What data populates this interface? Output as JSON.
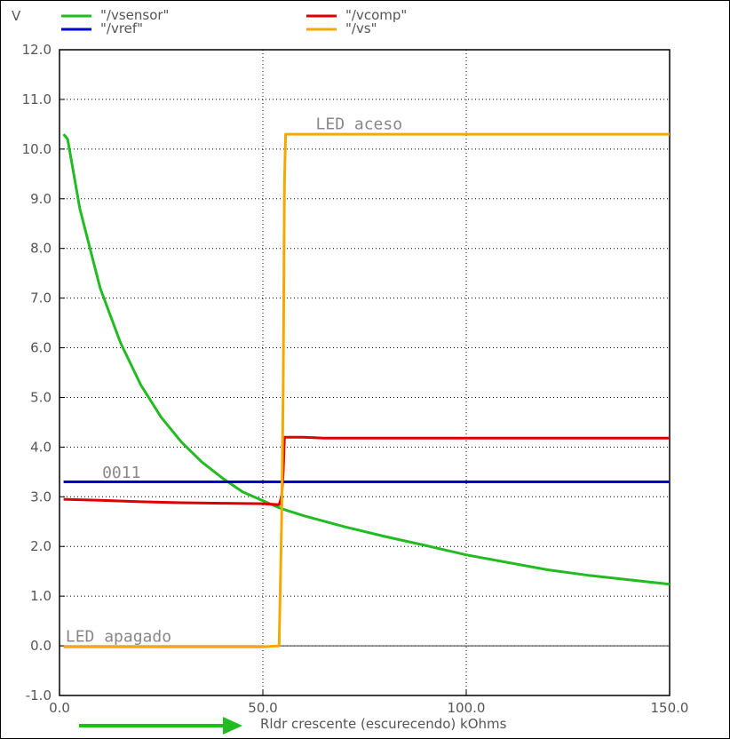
{
  "chart_data": {
    "type": "line",
    "title": "",
    "ylabel": "V",
    "xlabel": "Rldr crescente (escurecendo)  kOhms",
    "xlim": [
      0,
      150
    ],
    "ylim": [
      -1,
      12
    ],
    "x_ticks": [
      "0.0",
      "50.0",
      "100.0",
      "150.0"
    ],
    "y_ticks": [
      "-1.0",
      "0.0",
      "1.0",
      "2.0",
      "3.0",
      "4.0",
      "5.0",
      "6.0",
      "7.0",
      "8.0",
      "9.0",
      "10.0",
      "11.0",
      "12.0"
    ],
    "grid": true,
    "legend_position": "top",
    "series": [
      {
        "name": "\"/vsensor\"",
        "color": "#22bb22",
        "x": [
          1,
          2,
          5,
          10,
          15,
          20,
          25,
          30,
          35,
          40,
          45,
          50,
          54,
          55,
          60,
          70,
          80,
          90,
          100,
          110,
          120,
          130,
          140,
          150
        ],
        "y": [
          10.3,
          10.2,
          8.8,
          7.2,
          6.1,
          5.25,
          4.6,
          4.1,
          3.7,
          3.38,
          3.1,
          2.92,
          2.78,
          2.75,
          2.62,
          2.4,
          2.2,
          2.02,
          1.83,
          1.68,
          1.53,
          1.42,
          1.33,
          1.24
        ]
      },
      {
        "name": "\"/vref\"",
        "color": "#0000cc",
        "x": [
          1,
          150
        ],
        "y": [
          3.3,
          3.3
        ]
      },
      {
        "name": "\"/vcomp\"",
        "color": "#dd0000",
        "x": [
          1,
          10,
          20,
          30,
          40,
          50,
          54,
          54.6,
          55,
          55.3,
          60,
          65,
          100,
          150
        ],
        "y": [
          2.95,
          2.93,
          2.9,
          2.88,
          2.87,
          2.86,
          2.84,
          3.0,
          3.5,
          4.2,
          4.2,
          4.18,
          4.18,
          4.18
        ]
      },
      {
        "name": "\"/vs\"",
        "color": "#f5a800",
        "x": [
          1,
          50,
          54,
          54.6,
          55,
          55.3,
          55.6,
          60,
          100,
          150
        ],
        "y": [
          -0.02,
          -0.02,
          0.0,
          2.5,
          5.2,
          9.3,
          10.3,
          10.3,
          10.3,
          10.3
        ]
      }
    ],
    "annotations": [
      {
        "text": "LED aceso",
        "x": 63,
        "y": 10.4
      },
      {
        "text": "0011",
        "x": 10.5,
        "y": 3.38
      },
      {
        "text": "LED apagado",
        "x": 1.5,
        "y": 0.08
      }
    ]
  }
}
